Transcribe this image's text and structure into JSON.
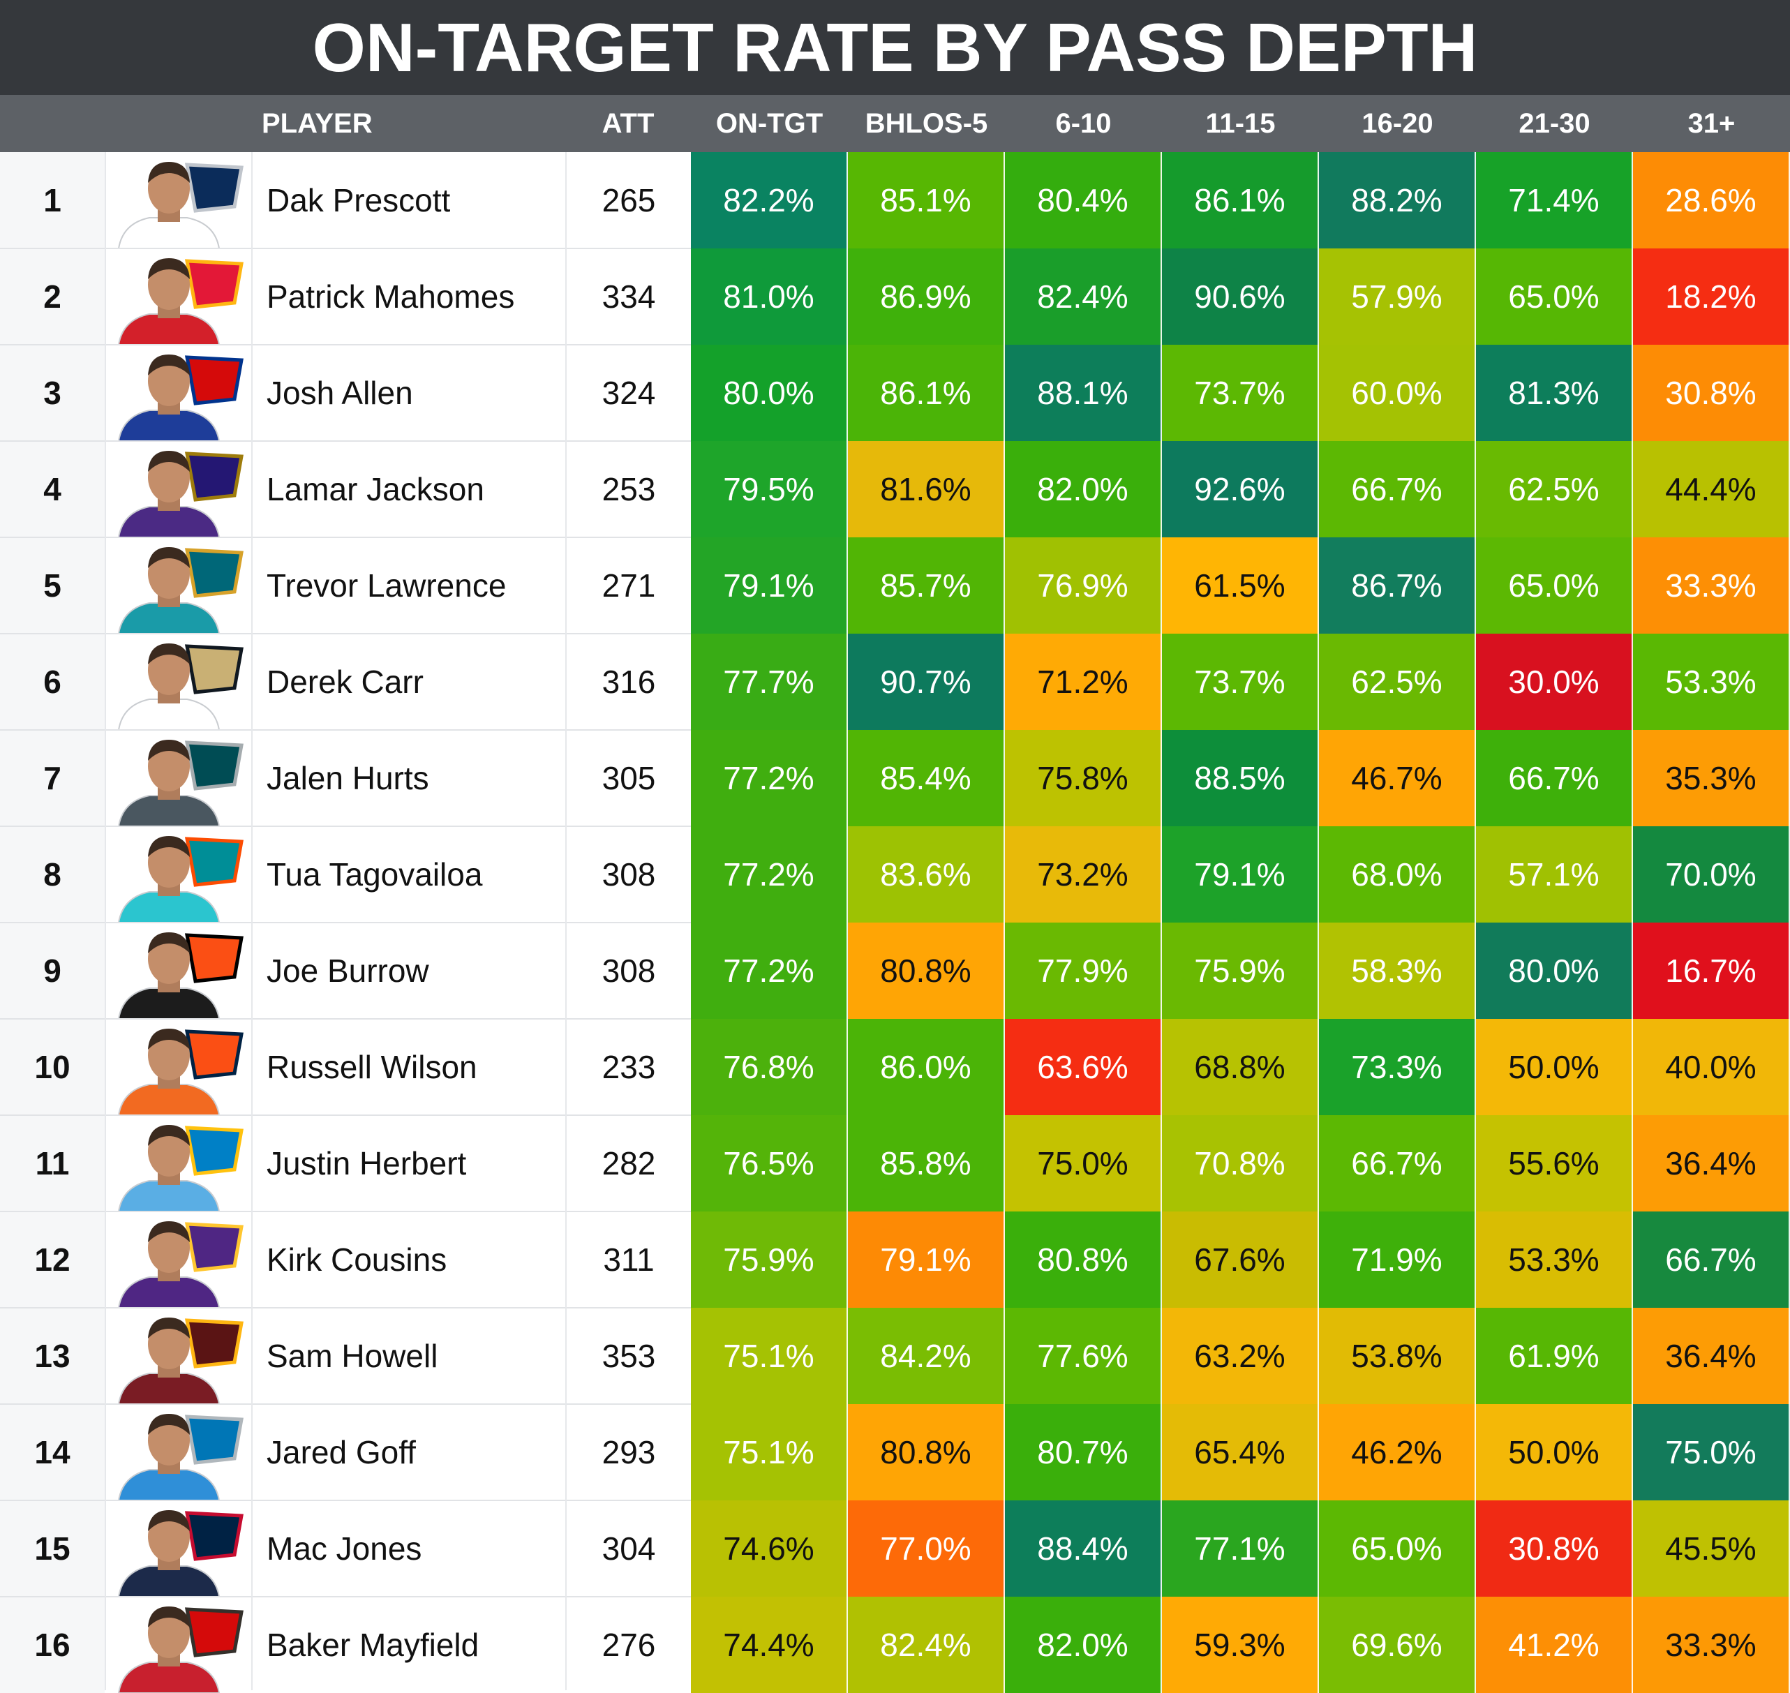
{
  "title": "ON-TARGET RATE BY PASS DEPTH",
  "headers": {
    "player": "PLAYER",
    "att": "ATT",
    "cols": [
      "ON-TGT",
      "BHLOS-5",
      "6-10",
      "11-15",
      "16-20",
      "21-30",
      "31+"
    ]
  },
  "chart_data": {
    "type": "table",
    "title": "ON-TARGET RATE BY PASS DEPTH",
    "columns": [
      "PLAYER",
      "ATT",
      "ON-TGT",
      "BHLOS-5",
      "6-10",
      "11-15",
      "16-20",
      "21-30",
      "31+"
    ],
    "rows": [
      {
        "rank": "1",
        "player": "Dak Prescott",
        "team": "cowboys",
        "att": "265",
        "values": [
          "82.2%",
          "85.1%",
          "80.4%",
          "86.1%",
          "88.2%",
          "71.4%",
          "28.6%"
        ],
        "colors": [
          "#0a8361",
          "#57b703",
          "#34ad0e",
          "#159b2c",
          "#117a5d",
          "#17a228",
          "#fd8c05"
        ]
      },
      {
        "rank": "2",
        "player": "Patrick Mahomes",
        "team": "chiefs",
        "att": "334",
        "values": [
          "81.0%",
          "86.9%",
          "82.4%",
          "90.6%",
          "57.9%",
          "65.0%",
          "18.2%"
        ],
        "colors": [
          "#0f9a3a",
          "#3fb10b",
          "#1a9e2a",
          "#0e8347",
          "#a6c203",
          "#56b704",
          "#f52d12"
        ]
      },
      {
        "rank": "3",
        "player": "Josh Allen",
        "team": "bills",
        "att": "324",
        "values": [
          "80.0%",
          "86.1%",
          "88.1%",
          "73.7%",
          "60.0%",
          "81.3%",
          "30.8%"
        ],
        "colors": [
          "#14a12a",
          "#4bb407",
          "#0d7e5a",
          "#5cb803",
          "#a4c203",
          "#0d7e5b",
          "#fd8c05"
        ]
      },
      {
        "rank": "4",
        "player": "Lamar Jackson",
        "team": "ravens",
        "att": "253",
        "values": [
          "79.5%",
          "81.6%",
          "82.0%",
          "92.6%",
          "66.7%",
          "62.5%",
          "44.4%"
        ],
        "colors": [
          "#1ea52a",
          "#e6b90a",
          "#3aaf0b",
          "#0d7a5d",
          "#5cb803",
          "#69ba02",
          "#b8c101"
        ]
      },
      {
        "rank": "5",
        "player": "Trevor Lawrence",
        "team": "jaguars",
        "att": "271",
        "values": [
          "79.1%",
          "85.7%",
          "76.9%",
          "61.5%",
          "86.7%",
          "65.0%",
          "33.3%"
        ],
        "colors": [
          "#23a526",
          "#51b505",
          "#a0c102",
          "#ffb504",
          "#127d5d",
          "#5cb803",
          "#fd8f05"
        ]
      },
      {
        "rank": "6",
        "player": "Derek Carr",
        "team": "saints",
        "att": "316",
        "values": [
          "77.7%",
          "90.7%",
          "71.2%",
          "73.7%",
          "62.5%",
          "30.0%",
          "53.3%"
        ],
        "colors": [
          "#39ac15",
          "#0d7a5d",
          "#ffaa05",
          "#5cb803",
          "#6ab902",
          "#d8111f",
          "#5ab803"
        ]
      },
      {
        "rank": "7",
        "player": "Jalen Hurts",
        "team": "eagles",
        "att": "305",
        "values": [
          "77.2%",
          "85.4%",
          "75.8%",
          "88.5%",
          "46.7%",
          "66.7%",
          "35.3%"
        ],
        "colors": [
          "#40ae0f",
          "#51b505",
          "#bdc201",
          "#0d8e3a",
          "#ffa505",
          "#3eb00a",
          "#fd9c05"
        ]
      },
      {
        "rank": "8",
        "player": "Tua Tagovailoa",
        "team": "dolphins",
        "att": "308",
        "values": [
          "77.2%",
          "83.6%",
          "73.2%",
          "79.1%",
          "68.0%",
          "57.1%",
          "70.0%"
        ],
        "colors": [
          "#40ae0f",
          "#9dc203",
          "#e8ba09",
          "#1da229",
          "#5cb803",
          "#a0c102",
          "#14893f"
        ]
      },
      {
        "rank": "9",
        "player": "Joe Burrow",
        "team": "bengals",
        "att": "308",
        "values": [
          "77.2%",
          "80.8%",
          "77.9%",
          "75.9%",
          "58.3%",
          "80.0%",
          "16.7%"
        ],
        "colors": [
          "#40ae0f",
          "#ffa505",
          "#6ab902",
          "#6ab902",
          "#b1c202",
          "#117b5a",
          "#e0101c"
        ]
      },
      {
        "rank": "10",
        "player": "Russell Wilson",
        "team": "broncos",
        "att": "233",
        "values": [
          "76.8%",
          "86.0%",
          "63.6%",
          "68.8%",
          "73.3%",
          "50.0%",
          "40.0%"
        ],
        "colors": [
          "#4cb10c",
          "#4bb407",
          "#f52d12",
          "#b7c202",
          "#1aa22a",
          "#f4b807",
          "#f1b708"
        ]
      },
      {
        "rank": "11",
        "player": "Justin Herbert",
        "team": "chargers",
        "att": "282",
        "values": [
          "76.5%",
          "85.8%",
          "75.0%",
          "70.8%",
          "66.7%",
          "55.6%",
          "36.4%"
        ],
        "colors": [
          "#54b409",
          "#4bb407",
          "#c4c201",
          "#a8c202",
          "#5cb803",
          "#c5c201",
          "#fd9c05"
        ]
      },
      {
        "rank": "12",
        "player": "Kirk Cousins",
        "team": "vikings",
        "att": "311",
        "values": [
          "75.9%",
          "79.1%",
          "80.8%",
          "67.6%",
          "71.9%",
          "53.3%",
          "66.7%"
        ],
        "colors": [
          "#6fba06",
          "#fd8a05",
          "#3aaf0b",
          "#c9bc02",
          "#3eb00a",
          "#d9bd03",
          "#17893e"
        ]
      },
      {
        "rank": "13",
        "player": "Sam Howell",
        "team": "commanders",
        "att": "353",
        "values": [
          "75.1%",
          "84.2%",
          "77.6%",
          "63.2%",
          "53.8%",
          "61.9%",
          "36.4%"
        ],
        "colors": [
          "#a5c203",
          "#7abd03",
          "#5cb803",
          "#f3b707",
          "#e1bb05",
          "#57b704",
          "#fd9c05"
        ]
      },
      {
        "rank": "14",
        "player": "Jared Goff",
        "team": "lions",
        "att": "293",
        "values": [
          "75.1%",
          "80.8%",
          "80.7%",
          "65.4%",
          "46.2%",
          "50.0%",
          "75.0%"
        ],
        "colors": [
          "#a5c203",
          "#ffa505",
          "#3aaf0b",
          "#e4bb06",
          "#ffa505",
          "#f4b807",
          "#137b5b"
        ]
      },
      {
        "rank": "15",
        "player": "Mac Jones",
        "team": "patriots",
        "att": "304",
        "values": [
          "74.6%",
          "77.0%",
          "88.4%",
          "77.1%",
          "65.0%",
          "30.8%",
          "45.5%"
        ],
        "colors": [
          "#b9c103",
          "#fd6a08",
          "#0d7e5a",
          "#2aa61f",
          "#5cb803",
          "#f02a14",
          "#bfc102"
        ]
      },
      {
        "rank": "16",
        "player": "Baker Mayfield",
        "team": "buccaneers",
        "att": "276",
        "values": [
          "74.4%",
          "82.4%",
          "82.0%",
          "59.3%",
          "69.6%",
          "41.2%",
          "33.3%"
        ],
        "colors": [
          "#c2c103",
          "#b0c102",
          "#3aaf0b",
          "#ffaa05",
          "#7abd03",
          "#fd8f05",
          "#fd9905"
        ]
      }
    ]
  }
}
